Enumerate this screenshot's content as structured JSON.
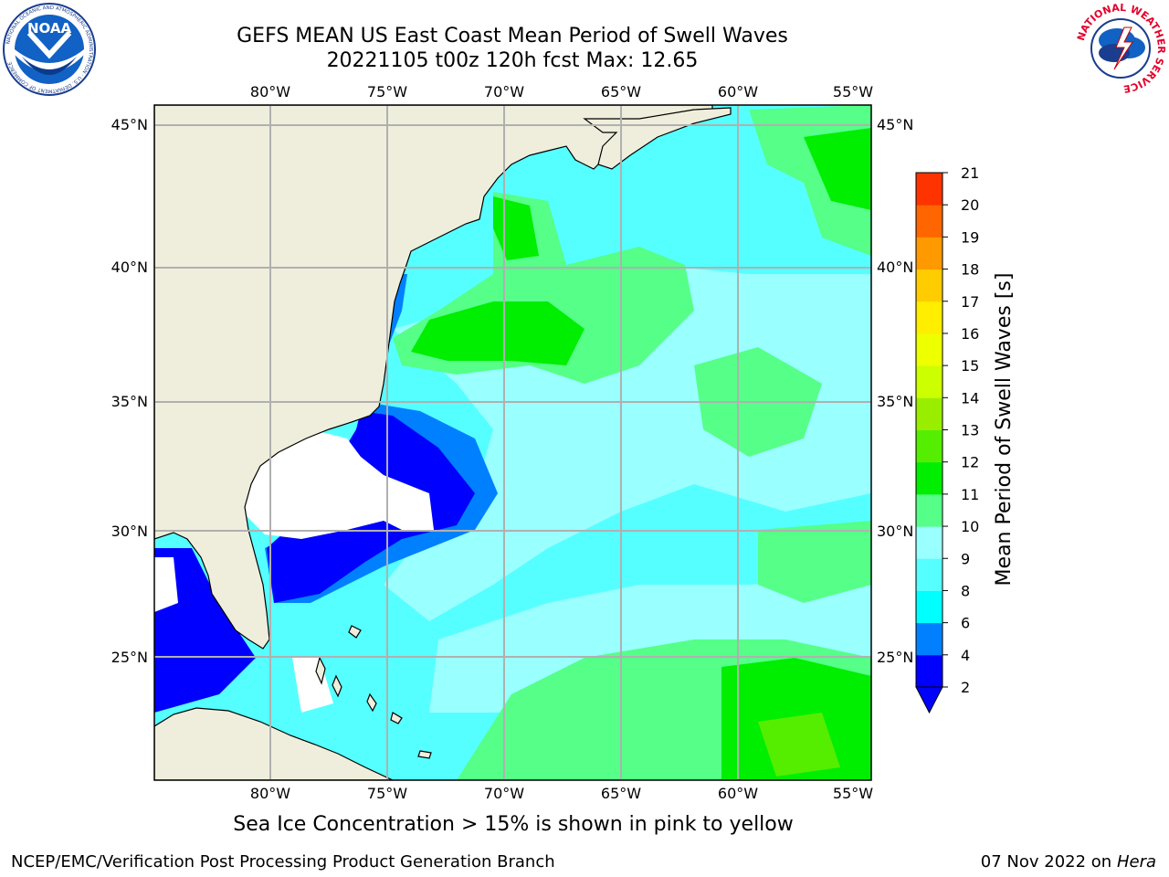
{
  "header": {
    "title_line1": "GEFS MEAN US East Coast Mean Period of Swell Waves",
    "title_line2": "20221105 t00z 120h fcst   Max: 12.65"
  },
  "logos": {
    "noaa": {
      "text": "NOAA",
      "ring_text": "NATIONAL OCEANIC AND ATMOSPHERIC ADMINISTRATION · U.S. DEPARTMENT OF COMMERCE"
    },
    "nws": {
      "ring_text": "NATIONAL WEATHER SERVICE"
    }
  },
  "map": {
    "lon_labels": [
      "80°W",
      "75°W",
      "70°W",
      "65°W",
      "60°W",
      "55°W"
    ],
    "lat_labels": [
      "45°N",
      "40°N",
      "35°N",
      "30°N",
      "25°N"
    ],
    "colors": {
      "land": "#efeedc",
      "grid": "#b0b0b0",
      "coast": "#000000"
    }
  },
  "colorbar": {
    "label": "Mean Period of Swell Waves [s]",
    "ticks": [
      "2",
      "4",
      "6",
      "8",
      "9",
      "10",
      "11",
      "12",
      "13",
      "14",
      "15",
      "16",
      "17",
      "18",
      "19",
      "20",
      "21"
    ],
    "colors": [
      "#0000ff",
      "#0080ff",
      "#00ffff",
      "#55ffff",
      "#99ffff",
      "#55ff88",
      "#00ee00",
      "#55ee00",
      "#99ee00",
      "#ccff00",
      "#eeff00",
      "#ffee00",
      "#ffcc00",
      "#ff9900",
      "#ff6600",
      "#ff3300",
      "#ff0000"
    ],
    "extend_color": "#0000ff"
  },
  "footer": {
    "note": "Sea Ice Concentration > 15% is shown in pink to yellow",
    "credit": "NCEP/EMC/Verification Post Processing Product Generation Branch",
    "date": "07 Nov 2022 on",
    "machine": "Hera"
  }
}
